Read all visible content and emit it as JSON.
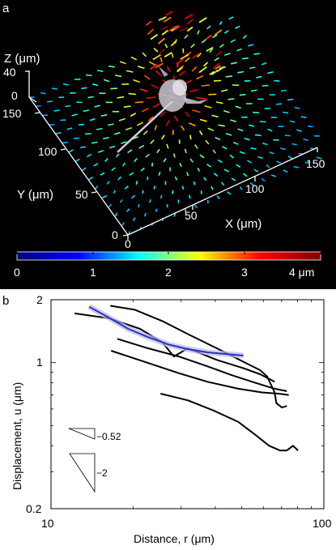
{
  "panel_a": {
    "label": "a",
    "z_axis": {
      "title": "Z (μm)",
      "ticks": [
        "40",
        "0"
      ]
    },
    "y_axis": {
      "title": "Y (μm)",
      "ticks": [
        "150",
        "100",
        "50",
        "0"
      ]
    },
    "x_axis": {
      "title": "X (μm)",
      "ticks": [
        "0",
        "50",
        "100",
        "150"
      ]
    },
    "colorbar": {
      "ticks": [
        "0",
        "1",
        "2",
        "3",
        "4 μm"
      ],
      "colors": [
        "#00007f",
        "#0000ff",
        "#00ffff",
        "#ffff00",
        "#ff0000",
        "#7f0000"
      ]
    }
  },
  "panel_b": {
    "label": "b",
    "slope_labels": [
      "−0.52",
      "−2"
    ]
  },
  "chart_data": {
    "type": "line",
    "title": "",
    "xlabel": "Distance, r (μm)",
    "ylabel": "Displacement, u (μm)",
    "xscale": "log",
    "yscale": "log",
    "xlim": [
      10,
      100
    ],
    "ylim": [
      0.2,
      2
    ],
    "x_ticks": [
      "10",
      "100"
    ],
    "y_ticks": [
      "2",
      "1",
      "0.2"
    ],
    "series": [
      {
        "color": "#000000",
        "points": [
          [
            12.2,
            1.72
          ],
          [
            16.3,
            1.63
          ],
          [
            21.2,
            1.45
          ],
          [
            25.6,
            1.25
          ],
          [
            28.2,
            1.07
          ],
          [
            31.7,
            1.17
          ],
          [
            40.6,
            1.03
          ],
          [
            50.7,
            0.94
          ],
          [
            58.4,
            0.88
          ],
          [
            66.0,
            0.81
          ]
        ]
      },
      {
        "color": "#000000",
        "points": [
          [
            16.5,
            1.87
          ],
          [
            20.3,
            1.79
          ],
          [
            25.6,
            1.58
          ],
          [
            31.7,
            1.37
          ],
          [
            40.6,
            1.17
          ],
          [
            50.7,
            1.01
          ],
          [
            58.4,
            0.92
          ],
          [
            61.9,
            0.86
          ],
          [
            66.0,
            0.72
          ],
          [
            67.0,
            0.64
          ],
          [
            70.2,
            0.61
          ],
          [
            73.2,
            0.62
          ]
        ]
      },
      {
        "color": "#000000",
        "points": [
          [
            17.5,
            1.3
          ],
          [
            22.2,
            1.18
          ],
          [
            29.4,
            1.07
          ],
          [
            37.4,
            0.96
          ],
          [
            46.1,
            0.87
          ],
          [
            56.2,
            0.8
          ],
          [
            66.0,
            0.75
          ],
          [
            73.2,
            0.73
          ]
        ]
      },
      {
        "color": "#000000",
        "points": [
          [
            16.6,
            1.14
          ],
          [
            22.5,
            1.0
          ],
          [
            29.4,
            0.89
          ],
          [
            37.4,
            0.81
          ],
          [
            48.6,
            0.75
          ],
          [
            59.4,
            0.72
          ],
          [
            68.3,
            0.71
          ],
          [
            74.4,
            0.7
          ]
        ]
      },
      {
        "color": "#000000",
        "points": [
          [
            25.2,
            0.71
          ],
          [
            31.7,
            0.66
          ],
          [
            39.4,
            0.59
          ],
          [
            48.6,
            0.52
          ],
          [
            56.2,
            0.45
          ],
          [
            63.0,
            0.4
          ],
          [
            69.0,
            0.38
          ],
          [
            73.2,
            0.38
          ],
          [
            77.1,
            0.4
          ],
          [
            80.4,
            0.38
          ]
        ]
      },
      {
        "name": "",
        "color": "#2f2fc8",
        "band": true,
        "points": [
          [
            13.8,
            1.85
          ],
          [
            16.2,
            1.65
          ],
          [
            19.2,
            1.45
          ],
          [
            22.5,
            1.33
          ],
          [
            27.0,
            1.22
          ],
          [
            31.7,
            1.16
          ],
          [
            37.4,
            1.12
          ],
          [
            43.6,
            1.1
          ],
          [
            50.7,
            1.08
          ]
        ]
      }
    ],
    "slope_triangles": [
      {
        "label": "−0.52",
        "slope": -0.52
      },
      {
        "label": "−2",
        "slope": -2
      }
    ]
  }
}
